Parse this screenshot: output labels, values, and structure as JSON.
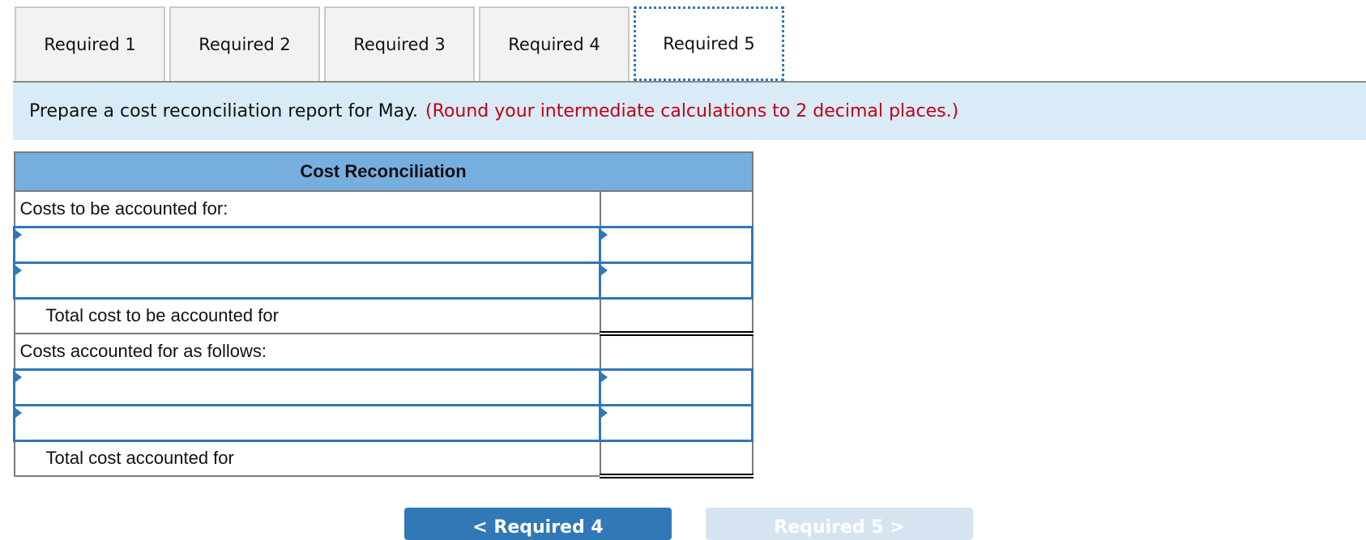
{
  "tabs": [
    {
      "label": "Required 1",
      "active": false
    },
    {
      "label": "Required 2",
      "active": false
    },
    {
      "label": "Required 3",
      "active": false
    },
    {
      "label": "Required 4",
      "active": false
    },
    {
      "label": "Required 5",
      "active": true
    }
  ],
  "instruction": {
    "text": "Prepare a cost reconciliation report for May.",
    "note": "(Round your intermediate calculations to 2 decimal places.)"
  },
  "table": {
    "title": "Cost Reconciliation",
    "rows": {
      "costs_to_account_header": "Costs to be accounted for:",
      "total_to_account": "Total cost to be accounted for",
      "costs_accounted_header": "Costs accounted for as follows:",
      "total_accounted": "Total cost accounted for"
    },
    "inputs": {
      "r1_label": "",
      "r1_amount": "",
      "r2_label": "",
      "r2_amount": "",
      "r3_label": "",
      "r3_amount": "",
      "r4_label": "",
      "r4_amount": ""
    }
  },
  "nav": {
    "prev_label": "< Required 4",
    "next_label": "Required 5 >"
  },
  "colors": {
    "header": "#77aee0",
    "banner": "#d9ebf6",
    "accent": "#2f77b8",
    "note": "#c0001a"
  }
}
